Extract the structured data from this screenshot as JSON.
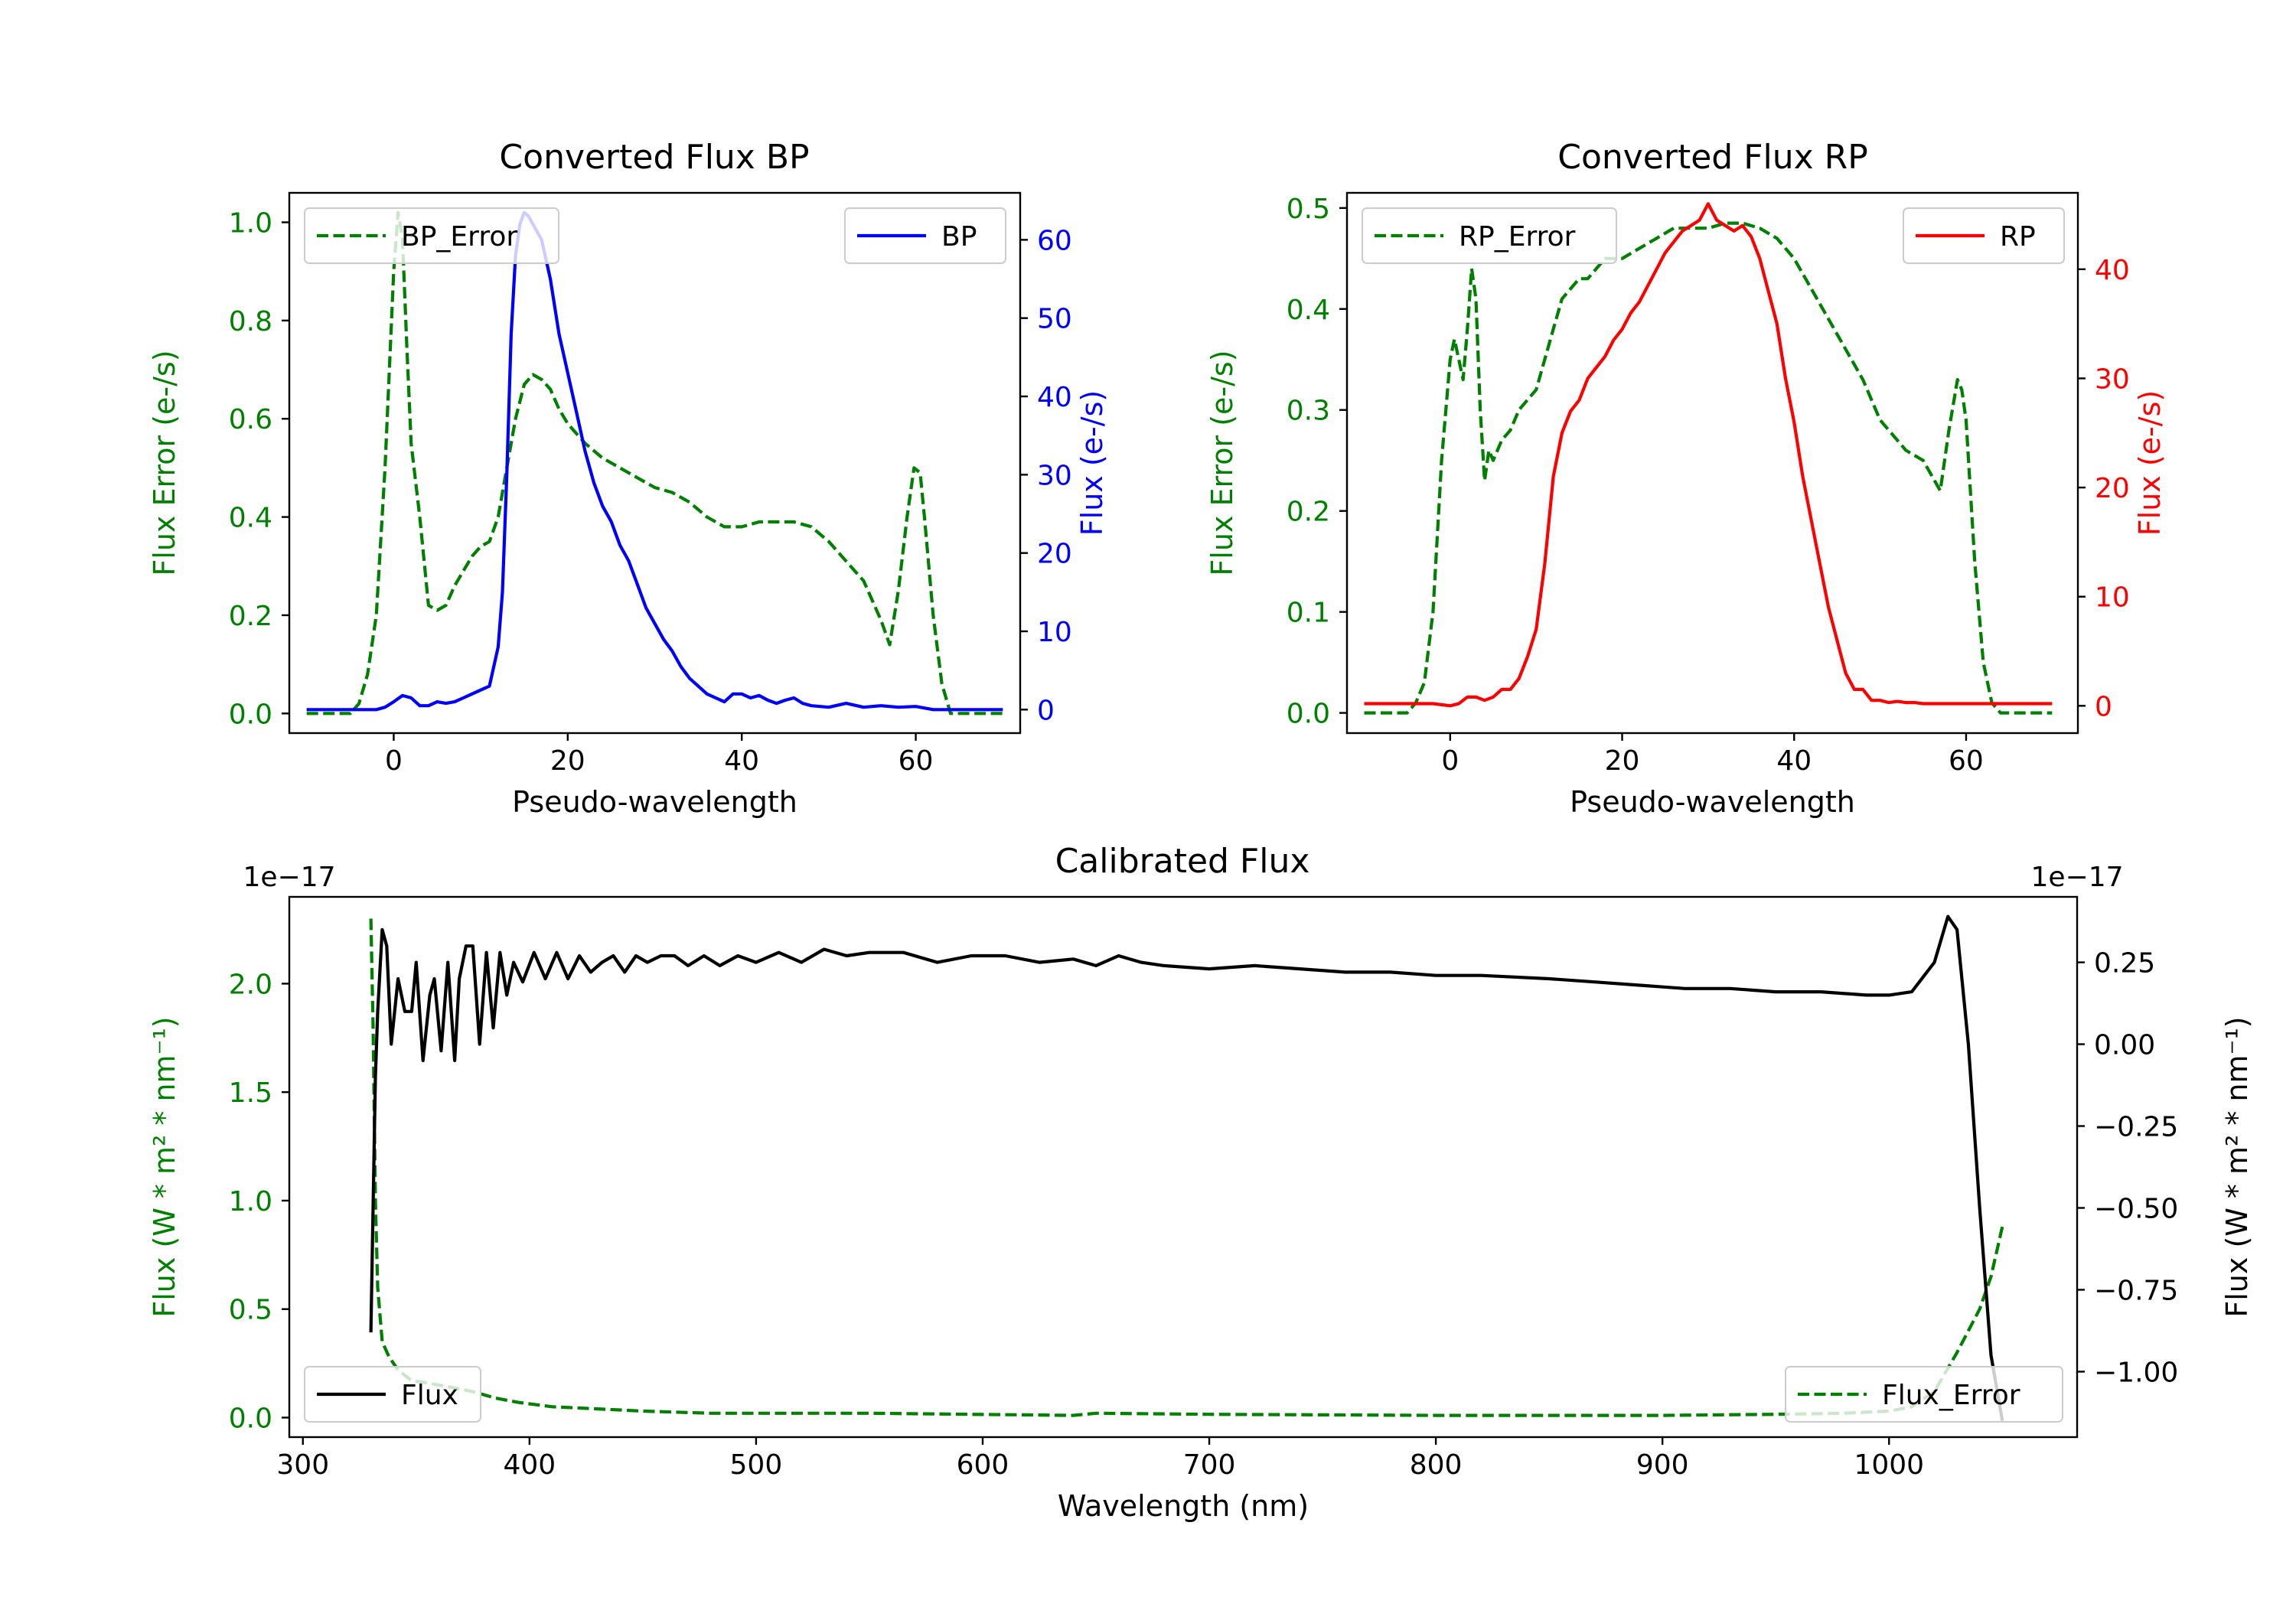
{
  "colors": {
    "green": "#008000",
    "blue": "#0000ff",
    "red": "#ff0000",
    "black": "#000000"
  },
  "chart_data": [
    {
      "type": "line",
      "title": "Converted Flux BP",
      "xlabel": "Pseudo-wavelength",
      "ylabel_left": "Flux Error (e-/s)",
      "ylabel_right": "Flux (e-/s)",
      "xlim": [
        -12,
        72
      ],
      "ylim_left": [
        -0.04,
        1.06
      ],
      "ylim_right": [
        -3,
        66
      ],
      "xticks": [
        0,
        20,
        40,
        60
      ],
      "xtick_labels": [
        "0",
        "20",
        "40",
        "60"
      ],
      "yticks_left": [
        0.0,
        0.2,
        0.4,
        0.6,
        0.8,
        1.0
      ],
      "ytick_labels_left": [
        "0.0",
        "0.2",
        "0.4",
        "0.6",
        "0.8",
        "1.0"
      ],
      "yticks_right": [
        0,
        10,
        20,
        30,
        40,
        50,
        60
      ],
      "ytick_labels_right": [
        "0",
        "10",
        "20",
        "30",
        "40",
        "50",
        "60"
      ],
      "legend_left": {
        "label": "BP_Error",
        "position": "upper left"
      },
      "legend_right": {
        "label": "BP",
        "position": "upper right"
      },
      "series": [
        {
          "name": "BP_Error",
          "axis": "left",
          "style": "dashed",
          "color": "green",
          "x": [
            -10,
            -5,
            -4,
            -3,
            -2,
            -1,
            0,
            0.5,
            1,
            1.5,
            2,
            3,
            4,
            5,
            6,
            7,
            8,
            9,
            10,
            11,
            12,
            13,
            14,
            15,
            16,
            17,
            18,
            19,
            20,
            22,
            24,
            26,
            28,
            30,
            32,
            34,
            36,
            38,
            40,
            42,
            44,
            46,
            48,
            50,
            52,
            54,
            56,
            57,
            58,
            59,
            59.8,
            60.5,
            61,
            62,
            63,
            64,
            65,
            66,
            68,
            70
          ],
          "y": [
            0.0,
            0.0,
            0.02,
            0.08,
            0.2,
            0.5,
            0.9,
            1.02,
            0.97,
            0.75,
            0.55,
            0.4,
            0.22,
            0.21,
            0.22,
            0.26,
            0.29,
            0.32,
            0.34,
            0.35,
            0.4,
            0.5,
            0.6,
            0.67,
            0.69,
            0.68,
            0.66,
            0.62,
            0.59,
            0.55,
            0.52,
            0.5,
            0.48,
            0.46,
            0.45,
            0.43,
            0.4,
            0.38,
            0.38,
            0.39,
            0.39,
            0.39,
            0.38,
            0.35,
            0.31,
            0.27,
            0.19,
            0.14,
            0.25,
            0.4,
            0.5,
            0.49,
            0.4,
            0.2,
            0.06,
            0.0,
            0.0,
            0.0,
            0.0,
            0.0
          ]
        },
        {
          "name": "BP",
          "axis": "right",
          "style": "solid",
          "color": "blue",
          "x": [
            -10,
            -4,
            -2,
            -1,
            0,
            1,
            2,
            3,
            4,
            5,
            6,
            7,
            8,
            9,
            10,
            11,
            12,
            12.5,
            13,
            13.5,
            14,
            14.5,
            15,
            15.5,
            16,
            17,
            18,
            19,
            20,
            21,
            22,
            23,
            24,
            25,
            26,
            27,
            28,
            29,
            30,
            31,
            32,
            33,
            34,
            35,
            36,
            37,
            38,
            39,
            40,
            41,
            42,
            43,
            44,
            45,
            46,
            47,
            48,
            50,
            52,
            54,
            56,
            58,
            60,
            62,
            64,
            66,
            70
          ],
          "y": [
            0,
            0,
            0,
            0.3,
            1.0,
            1.8,
            1.5,
            0.5,
            0.5,
            1.0,
            0.8,
            1.0,
            1.5,
            2.0,
            2.5,
            3.0,
            8.0,
            15,
            30,
            48,
            58,
            62,
            63.5,
            63,
            62,
            60,
            55,
            48,
            43,
            38,
            33,
            29,
            26,
            24,
            21,
            19,
            16,
            13,
            11,
            9,
            7.5,
            5.5,
            4,
            3,
            2,
            1.5,
            1.0,
            2.0,
            2.0,
            1.5,
            1.8,
            1.2,
            0.8,
            1.2,
            1.5,
            0.8,
            0.5,
            0.3,
            0.8,
            0.3,
            0.5,
            0.3,
            0.4,
            0,
            0,
            0,
            0
          ]
        }
      ]
    },
    {
      "type": "line",
      "title": "Converted Flux RP",
      "xlabel": "Pseudo-wavelength",
      "ylabel_left": "Flux Error (e-/s)",
      "ylabel_right": "Flux (e-/s)",
      "xlim": [
        -12,
        73
      ],
      "ylim_left": [
        -0.02,
        0.515
      ],
      "ylim_right": [
        -2.5,
        47
      ],
      "xticks": [
        0,
        20,
        40,
        60
      ],
      "xtick_labels": [
        "0",
        "20",
        "40",
        "60"
      ],
      "yticks_left": [
        0.0,
        0.1,
        0.2,
        0.3,
        0.4,
        0.5
      ],
      "ytick_labels_left": [
        "0.0",
        "0.1",
        "0.2",
        "0.3",
        "0.4",
        "0.5"
      ],
      "yticks_right": [
        0,
        10,
        20,
        30,
        40
      ],
      "ytick_labels_right": [
        "0",
        "10",
        "20",
        "30",
        "40"
      ],
      "legend_left": {
        "label": "RP_Error",
        "position": "upper left"
      },
      "legend_right": {
        "label": "RP",
        "position": "upper right"
      },
      "series": [
        {
          "name": "RP_Error",
          "axis": "left",
          "style": "dashed",
          "color": "green",
          "x": [
            -10,
            -5,
            -4,
            -3,
            -2,
            -1,
            0,
            0.5,
            1,
            1.5,
            2,
            2.5,
            3,
            3.5,
            4,
            4.5,
            5,
            6,
            7,
            8,
            9,
            10,
            11,
            12,
            13,
            14,
            15,
            16,
            18,
            20,
            22,
            24,
            26,
            28,
            30,
            32,
            34,
            36,
            38,
            40,
            42,
            44,
            46,
            48,
            50,
            52,
            53,
            54,
            55,
            56,
            57,
            58,
            59,
            59.5,
            60,
            61,
            62,
            63,
            64,
            66,
            70
          ],
          "y": [
            0.0,
            0.0,
            0.01,
            0.03,
            0.1,
            0.25,
            0.35,
            0.37,
            0.35,
            0.33,
            0.38,
            0.44,
            0.41,
            0.3,
            0.23,
            0.26,
            0.25,
            0.27,
            0.28,
            0.3,
            0.31,
            0.32,
            0.35,
            0.38,
            0.41,
            0.42,
            0.43,
            0.43,
            0.45,
            0.45,
            0.46,
            0.47,
            0.48,
            0.48,
            0.48,
            0.485,
            0.485,
            0.48,
            0.47,
            0.45,
            0.42,
            0.39,
            0.36,
            0.33,
            0.29,
            0.27,
            0.26,
            0.255,
            0.25,
            0.235,
            0.22,
            0.28,
            0.33,
            0.32,
            0.29,
            0.15,
            0.05,
            0.01,
            0.0,
            0.0,
            0.0
          ]
        },
        {
          "name": "RP",
          "axis": "right",
          "style": "solid",
          "color": "red",
          "x": [
            -10,
            -4,
            -2,
            0,
            1,
            2,
            3,
            4,
            5,
            6,
            7,
            8,
            9,
            10,
            11,
            12,
            13,
            14,
            15,
            16,
            17,
            18,
            19,
            20,
            21,
            22,
            23,
            24,
            25,
            26,
            27,
            28,
            29,
            30,
            31,
            32,
            33,
            34,
            35,
            36,
            37,
            38,
            39,
            40,
            41,
            42,
            43,
            44,
            45,
            46,
            47,
            48,
            49,
            50,
            51,
            52,
            53,
            54,
            55,
            56,
            58,
            60,
            62,
            70
          ],
          "y": [
            0.2,
            0.2,
            0.2,
            0.0,
            0.2,
            0.8,
            0.8,
            0.5,
            0.8,
            1.5,
            1.5,
            2.5,
            4.5,
            7,
            13,
            21,
            25,
            27,
            28,
            30,
            31,
            32,
            33.5,
            34.5,
            36,
            37,
            38.5,
            40,
            41.5,
            42.5,
            43.5,
            44,
            44.5,
            46,
            44.5,
            44,
            43.5,
            44,
            43,
            41,
            38,
            35,
            30,
            26,
            21,
            17,
            13,
            9,
            6,
            3,
            1.5,
            1.5,
            0.5,
            0.5,
            0.3,
            0.4,
            0.3,
            0.3,
            0.2,
            0.2,
            0.2,
            0.2,
            0.2,
            0.2
          ]
        }
      ]
    },
    {
      "type": "line",
      "title": "Calibrated Flux",
      "xlabel": "Wavelength (nm)",
      "ylabel_left": "Flux (W * m² * nm⁻¹)",
      "ylabel_right": "Flux (W * m² * nm⁻¹)",
      "offset_text_left": "1e−17",
      "offset_text_right": "1e−17",
      "xlim": [
        294,
        1083
      ],
      "ylim_left": [
        -0.09,
        2.4
      ],
      "ylim_right": [
        -1.2,
        0.45
      ],
      "xticks": [
        300,
        400,
        500,
        600,
        700,
        800,
        900,
        1000
      ],
      "xtick_labels": [
        "300",
        "400",
        "500",
        "600",
        "700",
        "800",
        "900",
        "1000"
      ],
      "yticks_left": [
        0.0,
        0.5,
        1.0,
        1.5,
        2.0
      ],
      "ytick_labels_left": [
        "0.0",
        "0.5",
        "1.0",
        "1.5",
        "2.0"
      ],
      "yticks_right": [
        -1.0,
        -0.75,
        -0.5,
        -0.25,
        0.0,
        0.25
      ],
      "ytick_labels_right": [
        "−1.00",
        "−0.75",
        "−0.50",
        "−0.25",
        "0.00",
        "0.25"
      ],
      "legend_left": {
        "label": "Flux",
        "position": "lower left"
      },
      "legend_right": {
        "label": "Flux_Error",
        "position": "lower right"
      },
      "series": [
        {
          "name": "Flux_Error",
          "axis": "left",
          "style": "dashed",
          "color": "green",
          "x": [
            330,
            331,
            332,
            333,
            335,
            338,
            342,
            348,
            355,
            365,
            375,
            385,
            395,
            410,
            430,
            450,
            480,
            550,
            640,
            650,
            700,
            800,
            900,
            950,
            980,
            1000,
            1010,
            1020,
            1030,
            1040,
            1045,
            1050
          ],
          "y": [
            2.3,
            1.8,
            1.0,
            0.6,
            0.35,
            0.28,
            0.22,
            0.17,
            0.16,
            0.14,
            0.12,
            0.09,
            0.07,
            0.05,
            0.04,
            0.03,
            0.02,
            0.02,
            0.01,
            0.02,
            0.015,
            0.01,
            0.01,
            0.015,
            0.02,
            0.03,
            0.05,
            0.12,
            0.3,
            0.5,
            0.65,
            0.88
          ]
        },
        {
          "name": "Flux",
          "axis": "right",
          "style": "solid",
          "color": "black",
          "x": [
            330,
            332,
            333,
            335,
            337,
            339,
            342,
            345,
            348,
            350,
            353,
            356,
            358,
            361,
            364,
            367,
            369,
            372,
            375,
            378,
            381,
            384,
            387,
            390,
            393,
            397,
            402,
            407,
            412,
            417,
            422,
            427,
            432,
            437,
            442,
            447,
            452,
            458,
            464,
            470,
            477,
            484,
            492,
            500,
            510,
            520,
            530,
            540,
            550,
            565,
            580,
            595,
            610,
            625,
            640,
            650,
            660,
            670,
            680,
            700,
            720,
            740,
            760,
            780,
            800,
            820,
            850,
            870,
            890,
            910,
            930,
            950,
            970,
            990,
            1000,
            1010,
            1020,
            1026,
            1030,
            1035,
            1040,
            1045,
            1050
          ],
          "y": [
            -0.88,
            -0.1,
            0.1,
            0.35,
            0.3,
            0.0,
            0.2,
            0.1,
            0.1,
            0.25,
            -0.05,
            0.15,
            0.2,
            -0.02,
            0.25,
            -0.05,
            0.2,
            0.3,
            0.3,
            0.0,
            0.28,
            0.05,
            0.28,
            0.15,
            0.25,
            0.19,
            0.28,
            0.2,
            0.28,
            0.2,
            0.27,
            0.22,
            0.25,
            0.27,
            0.22,
            0.27,
            0.25,
            0.27,
            0.27,
            0.24,
            0.27,
            0.24,
            0.27,
            0.25,
            0.28,
            0.25,
            0.29,
            0.27,
            0.28,
            0.28,
            0.25,
            0.27,
            0.27,
            0.25,
            0.26,
            0.24,
            0.27,
            0.25,
            0.24,
            0.23,
            0.24,
            0.23,
            0.22,
            0.22,
            0.21,
            0.21,
            0.2,
            0.19,
            0.18,
            0.17,
            0.17,
            0.16,
            0.16,
            0.15,
            0.15,
            0.16,
            0.25,
            0.39,
            0.35,
            0.0,
            -0.5,
            -0.95,
            -1.15
          ]
        }
      ]
    }
  ]
}
